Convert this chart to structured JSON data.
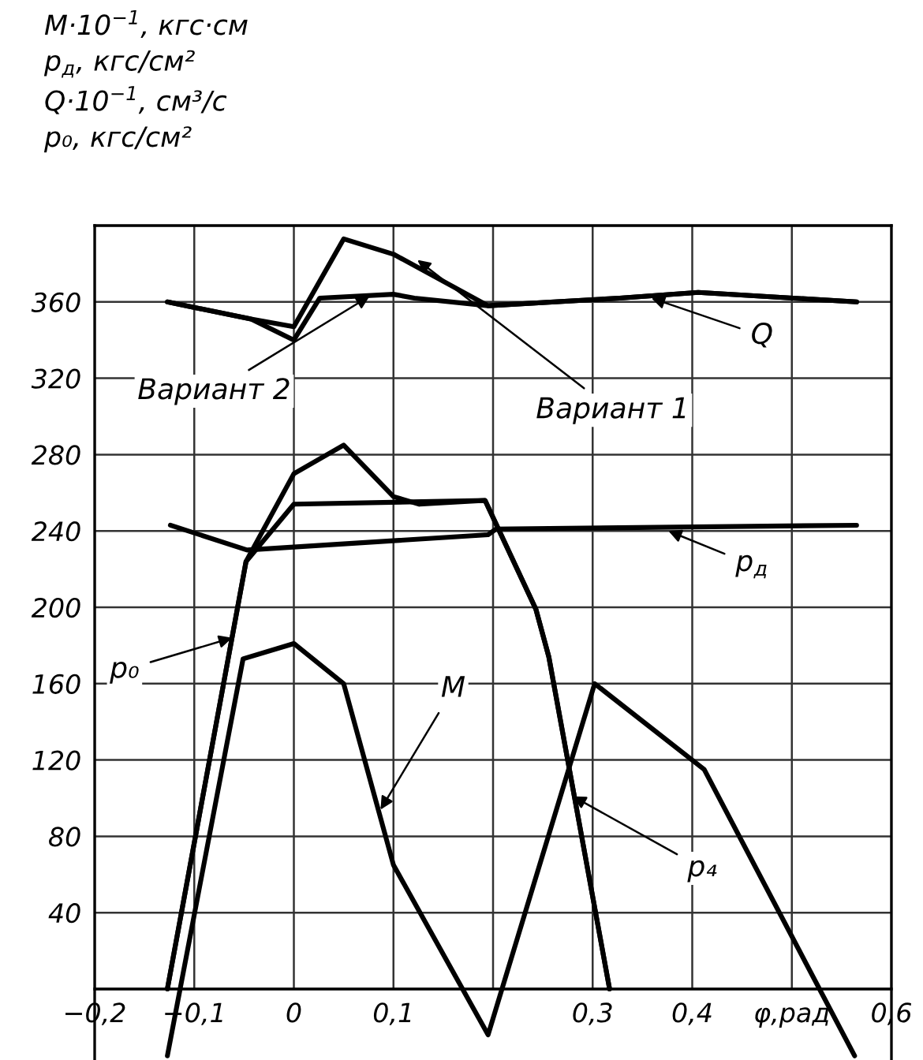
{
  "chart_data": {
    "type": "line",
    "ylabel": "M·10$^{−1}$, кгс·см\np$_{д}$, кгс/см²\nQ·10$^{−1}$, см³/с\np₀, кгс/см²",
    "xlim": [
      -0.2,
      0.6
    ],
    "ylim": [
      -40,
      400
    ],
    "xticks": [
      {
        "value": -0.2,
        "label": "−0,2"
      },
      {
        "value": -0.1,
        "label": "−0,1"
      },
      0,
      {
        "value": 0.1,
        "label": "0,1"
      },
      {
        "value": 0.2,
        "label": null
      },
      {
        "value": 0.3,
        "label": "0,3"
      },
      {
        "value": 0.4,
        "label": "0,4"
      },
      {
        "value": 0.5,
        "label": "φ,рад"
      },
      {
        "value": 0.6,
        "label": "0,6"
      }
    ],
    "yticks": [
      {
        "value": 0,
        "label": null
      },
      40,
      80,
      120,
      160,
      200,
      240,
      280,
      320,
      360,
      {
        "value": 400,
        "label": null
      }
    ],
    "grid": true,
    "marker": "none",
    "line_style": "solid",
    "series": [
      {
        "color": "#000000",
        "x": [
          -0.127,
          -0.043,
          0.0,
          0.05,
          0.1,
          0.195,
          0.327,
          0.406,
          0.565
        ],
        "values": [
          360,
          351,
          347,
          393,
          385,
          358,
          362,
          365,
          360
        ]
      },
      {
        "color": "#000000",
        "x": [
          -0.127,
          -0.043,
          0.0,
          0.026,
          0.1,
          0.121,
          0.195,
          0.327,
          0.406,
          0.565
        ],
        "values": [
          360,
          351,
          340,
          362,
          364,
          362,
          358,
          362,
          365,
          360
        ]
      },
      {
        "color": "#000000",
        "x": [
          -0.124,
          -0.047,
          0.195,
          0.203,
          0.565
        ],
        "values": [
          243,
          230,
          238,
          241,
          243
        ]
      },
      {
        "color": "#000000",
        "x": [
          -0.127,
          -0.048,
          0.0,
          0.05,
          0.1,
          0.126,
          0.192,
          0.243,
          0.256,
          0.317
        ],
        "values": [
          0,
          224,
          270,
          285,
          258,
          254,
          256,
          199,
          174,
          0
        ]
      },
      {
        "color": "#000000",
        "x": [
          -0.127,
          -0.048,
          0.0,
          0.192,
          0.243,
          0.256,
          0.317
        ],
        "values": [
          0,
          224,
          254,
          256,
          199,
          174,
          0
        ]
      },
      {
        "color": "#000000",
        "x": [
          -0.127,
          -0.051,
          0.0,
          0.05,
          0.1,
          0.195,
          0.302,
          0.412,
          0.563
        ],
        "values": [
          -35,
          173,
          181,
          160,
          65,
          -24,
          160,
          115,
          -35
        ]
      }
    ],
    "annotations": [
      {
        "text": "Q",
        "x": 0.359,
        "y": 362
      },
      {
        "text": "p$_{д}$",
        "x": 0.376,
        "y": 240
      },
      {
        "text": "p₀",
        "x": -0.062,
        "y": 184
      },
      {
        "text": "M",
        "x": 0.087,
        "y": 94
      },
      {
        "text": "p₄",
        "x": 0.28,
        "y": 101
      },
      {
        "text": "Вариант 2",
        "x": 0.076,
        "y": 363
      },
      {
        "text": "Вариант 1",
        "x": 0.124,
        "y": 382
      }
    ]
  }
}
